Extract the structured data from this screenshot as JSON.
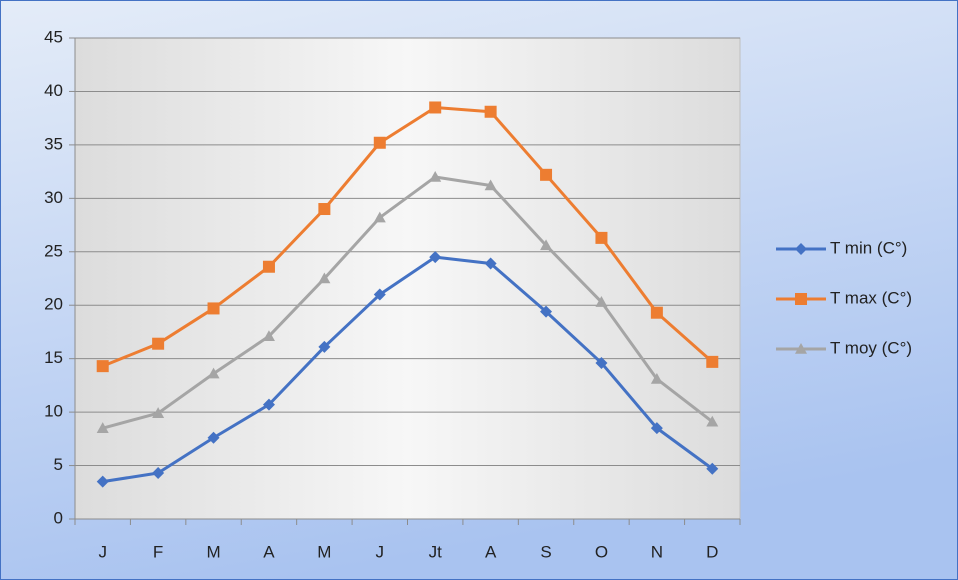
{
  "chart_data": {
    "type": "line",
    "categories": [
      "J",
      "F",
      "M",
      "A",
      "M",
      "J",
      "Jt",
      "A",
      "S",
      "O",
      "N",
      "D"
    ],
    "series": [
      {
        "name": "T min (C°)",
        "color": "#4472c4",
        "marker": "diamond",
        "values": [
          3.5,
          4.3,
          7.6,
          10.7,
          16.1,
          21.0,
          24.5,
          23.9,
          19.4,
          14.6,
          8.5,
          4.7
        ]
      },
      {
        "name": "T max (C°)",
        "color": "#ed7d31",
        "marker": "square",
        "values": [
          14.3,
          16.4,
          19.7,
          23.6,
          29.0,
          35.2,
          38.5,
          38.1,
          32.2,
          26.3,
          19.3,
          14.7
        ]
      },
      {
        "name": "T moy (C°)",
        "color": "#a5a5a5",
        "marker": "triangle",
        "values": [
          8.5,
          9.9,
          13.6,
          17.1,
          22.5,
          28.2,
          32.0,
          31.2,
          25.6,
          20.3,
          13.1,
          9.1
        ]
      }
    ],
    "ylim": [
      0,
      45
    ],
    "yticks": [
      0,
      5,
      10,
      15,
      20,
      25,
      30,
      35,
      40,
      45
    ],
    "grid": true,
    "legend": "right"
  }
}
